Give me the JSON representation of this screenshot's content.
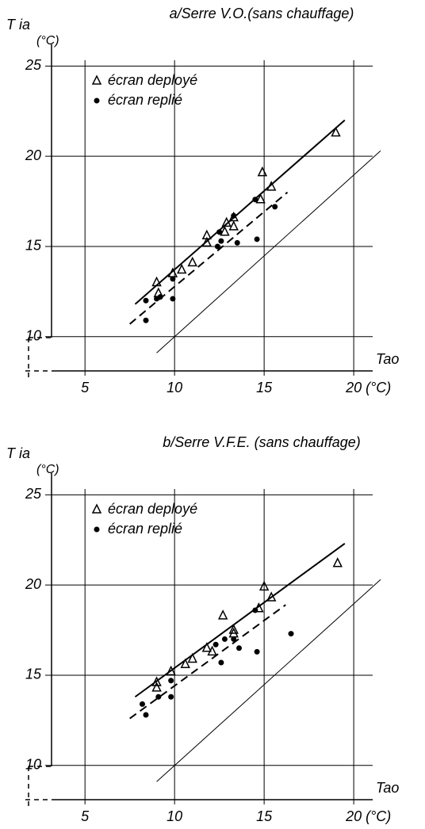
{
  "chart_data": [
    {
      "type": "scatter",
      "title": "a/Serre V.O.(sans chauffage)",
      "y_label": "T ia",
      "y_unit": "(°C)",
      "x_label": "Tao",
      "xlim": [
        3,
        21.5
      ],
      "ylim": [
        8.1,
        26.2
      ],
      "xticks": [
        5,
        10,
        15,
        {
          "value": 20,
          "label": "20 (°C)"
        }
      ],
      "yticks": [
        10,
        15,
        20,
        25
      ],
      "grid": true,
      "legend": "upper left",
      "series": [
        {
          "name": "écran deployé",
          "marker": "triangle",
          "color": "#000",
          "x": [
            9.0,
            9.1,
            9.9,
            10.4,
            11.0,
            11.8,
            11.8,
            12.8,
            12.9,
            13.3,
            13.3,
            14.8,
            14.9,
            15.4,
            19.0
          ],
          "values": [
            13.0,
            12.4,
            13.5,
            13.7,
            14.1,
            15.6,
            15.2,
            15.8,
            16.3,
            16.6,
            16.1,
            17.6,
            19.1,
            18.3,
            21.3
          ]
        },
        {
          "name": "écran replié",
          "marker": "dot",
          "color": "#000",
          "x": [
            8.4,
            8.4,
            9.0,
            9.2,
            9.9,
            9.9,
            12.4,
            12.6,
            12.5,
            13.3,
            13.5,
            14.5,
            14.6,
            15.6
          ],
          "values": [
            12.0,
            10.9,
            12.1,
            12.2,
            13.2,
            12.1,
            15.0,
            15.3,
            15.8,
            16.7,
            15.2,
            17.6,
            15.4,
            17.2
          ]
        }
      ],
      "lines": [
        {
          "style": "solid",
          "x": [
            7.8,
            19.5
          ],
          "y": [
            11.8,
            22.0
          ]
        },
        {
          "style": "dashed",
          "x": [
            7.5,
            16.3
          ],
          "y": [
            10.7,
            18.0
          ]
        },
        {
          "style": "thin",
          "x": [
            9.0,
            21.5
          ],
          "y": [
            9.1,
            20.3
          ]
        }
      ]
    },
    {
      "type": "scatter",
      "title": "b/Serre V.F.E. (sans chauffage)",
      "y_label": "T ia",
      "y_unit": "(°C)",
      "x_label": "Tao",
      "xlim": [
        3,
        21.5
      ],
      "ylim": [
        8.1,
        26.2
      ],
      "xticks": [
        5,
        10,
        15,
        {
          "value": 20,
          "label": "20 (°C)"
        }
      ],
      "yticks": [
        10,
        15,
        20,
        25
      ],
      "grid": true,
      "legend": "upper left",
      "series": [
        {
          "name": "écran deployé",
          "marker": "triangle",
          "color": "#000",
          "x": [
            9.0,
            9.0,
            9.8,
            10.6,
            11.0,
            11.8,
            12.1,
            12.7,
            13.3,
            13.3,
            14.7,
            15.0,
            15.4,
            19.1
          ],
          "values": [
            14.6,
            14.3,
            15.2,
            15.6,
            15.9,
            16.5,
            16.3,
            18.3,
            17.3,
            17.5,
            18.7,
            19.9,
            19.3,
            21.2
          ]
        },
        {
          "name": "écran replié",
          "marker": "dot",
          "color": "#000",
          "x": [
            8.2,
            8.4,
            9.1,
            9.8,
            9.8,
            12.3,
            12.6,
            12.8,
            13.3,
            13.6,
            14.5,
            14.6,
            16.5
          ],
          "values": [
            13.4,
            12.8,
            13.8,
            14.7,
            13.8,
            16.7,
            15.7,
            17.0,
            17.0,
            16.5,
            18.6,
            16.3,
            17.3
          ]
        }
      ],
      "lines": [
        {
          "style": "solid",
          "x": [
            7.8,
            19.5
          ],
          "y": [
            13.8,
            22.3
          ]
        },
        {
          "style": "dashed",
          "x": [
            7.5,
            16.2
          ],
          "y": [
            12.6,
            18.9
          ]
        },
        {
          "style": "thin",
          "x": [
            9.0,
            21.5
          ],
          "y": [
            9.1,
            20.3
          ]
        }
      ]
    }
  ]
}
